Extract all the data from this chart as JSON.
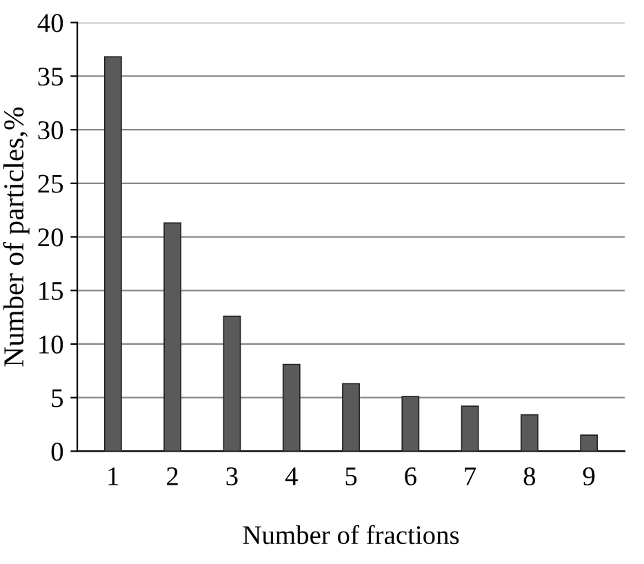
{
  "chart_data": {
    "type": "bar",
    "xlabel": "Number of fractions",
    "ylabel": "Number of particles,%",
    "categories": [
      "1",
      "2",
      "3",
      "4",
      "5",
      "6",
      "7",
      "8",
      "9"
    ],
    "values": [
      36.8,
      21.3,
      12.6,
      8.1,
      6.3,
      5.1,
      4.2,
      3.4,
      1.5
    ],
    "color": "#5a5a5a",
    "ylim": [
      0,
      40
    ],
    "yticks": [
      0,
      5,
      10,
      15,
      20,
      25,
      30,
      35,
      40
    ],
    "grid": "y"
  }
}
